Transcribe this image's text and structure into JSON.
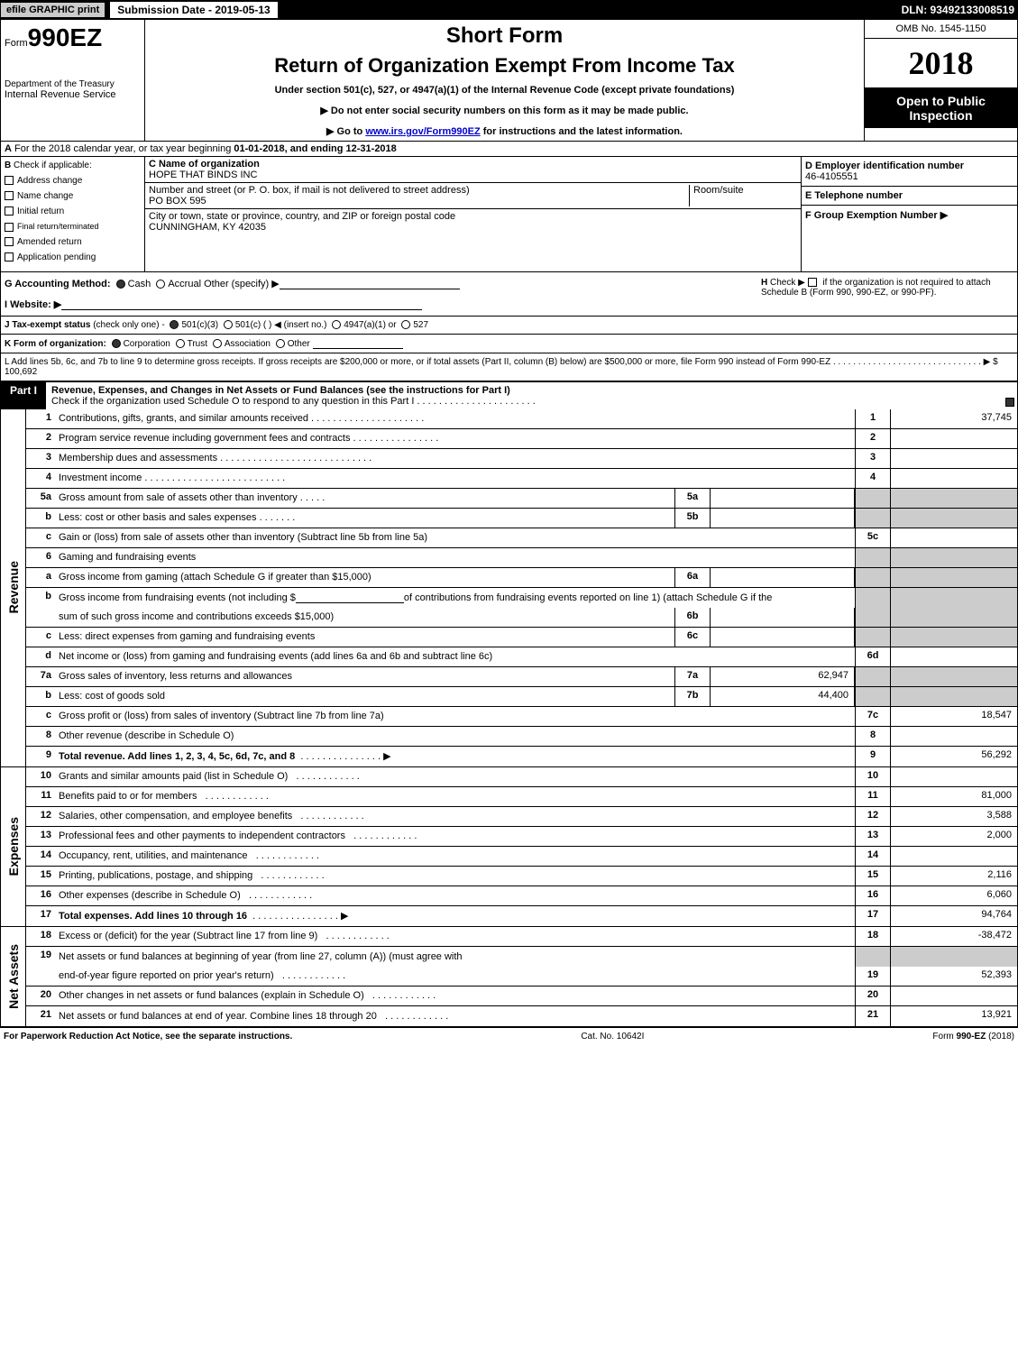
{
  "top_bar": {
    "efile": "efile GRAPHIC print",
    "submission": "Submission Date - 2019-05-13",
    "dln": "DLN: 93492133008519"
  },
  "header": {
    "form_prefix": "Form",
    "form_number": "990EZ",
    "dept_line1": "Department of the Treasury",
    "dept_line2": "Internal Revenue Service",
    "short_form": "Short Form",
    "title": "Return of Organization Exempt From Income Tax",
    "under_section": "Under section 501(c), 527, or 4947(a)(1) of the Internal Revenue Code (except private foundations)",
    "warning": "▶ Do not enter social security numbers on this form as it may be made public.",
    "goto": "▶ Go to www.irs.gov/Form990EZ for instructions and the latest information.",
    "goto_prefix": "▶ Go to ",
    "goto_link": "www.irs.gov/Form990EZ",
    "goto_suffix": " for instructions and the latest information.",
    "omb": "OMB No. 1545-1150",
    "year": "2018",
    "open_public_1": "Open to Public",
    "open_public_2": "Inspection"
  },
  "row_a": {
    "label": "A",
    "text_prefix": "For the 2018 calendar year, or tax year beginning ",
    "begin_date": "01-01-2018",
    "mid": ", and ending ",
    "end_date": "12-31-2018"
  },
  "section_b": {
    "label": "B",
    "title": "Check if applicable:",
    "items": [
      "Address change",
      "Name change",
      "Initial return",
      "Final return/terminated",
      "Amended return",
      "Application pending"
    ]
  },
  "section_c": {
    "name_label": "C Name of organization",
    "name_value": "HOPE THAT BINDS INC",
    "street_label": "Number and street (or P. O. box, if mail is not delivered to street address)",
    "street_value": "PO BOX 595",
    "room_label": "Room/suite",
    "city_label": "City or town, state or province, country, and ZIP or foreign postal code",
    "city_value": "CUNNINGHAM, KY  42035"
  },
  "section_d": {
    "ein_label": "D Employer identification number",
    "ein_value": "46-4105551",
    "phone_label": "E Telephone number",
    "group_label": "F Group Exemption Number  ▶"
  },
  "section_g": {
    "label": "G Accounting Method:",
    "cash": "Cash",
    "accrual": "Accrual",
    "other": "Other (specify) ▶",
    "h_label": "H",
    "h_text1": "Check ▶",
    "h_text2": "if the organization is not required to attach Schedule B (Form 990, 990-EZ, or 990-PF)."
  },
  "section_i": {
    "label": "I Website: ▶"
  },
  "section_j": {
    "label": "J Tax-exempt status",
    "text": "(check only one) -",
    "opt1": "501(c)(3)",
    "opt2": "501(c) (   ) ◀ (insert no.)",
    "opt3": "4947(a)(1) or",
    "opt4": "527"
  },
  "section_k": {
    "label": "K Form of organization:",
    "opts": [
      "Corporation",
      "Trust",
      "Association",
      "Other"
    ]
  },
  "section_l": {
    "text": "L Add lines 5b, 6c, and 7b to line 9 to determine gross receipts. If gross receipts are $200,000 or more, or if total assets (Part II, column (B) below) are $500,000 or more, file Form 990 instead of Form 990-EZ  . . . . . . . . . . . . . . . . . . . . . . . . . . . . . . ▶ $ 100,692"
  },
  "part1": {
    "label": "Part I",
    "title": "Revenue, Expenses, and Changes in Net Assets or Fund Balances (see the instructions for Part I)",
    "subtitle": "Check if the organization used Schedule O to respond to any question in this Part I . . . . . . . . . . . . . . . . . . . . . ."
  },
  "revenue": {
    "label": "Revenue",
    "rows": [
      {
        "n": "1",
        "desc": "Contributions, gifts, grants, and similar amounts received  . . . . . . . . . . . . . . . . . . . . .",
        "num": "1",
        "val": "37,745"
      },
      {
        "n": "2",
        "desc": "Program service revenue including government fees and contracts  . . . . . . . . . . . . . . . .",
        "num": "2",
        "val": ""
      },
      {
        "n": "3",
        "desc": "Membership dues and assessments  . . . . . . . . . . . . . . . . . . . . . . . . . . . .",
        "num": "3",
        "val": ""
      },
      {
        "n": "4",
        "desc": "Investment income  . . . . . . . . . . . . . . . . . . . . . . . . . .",
        "num": "4",
        "val": ""
      }
    ],
    "r5a": {
      "n": "5a",
      "desc": "Gross amount from sale of assets other than inventory  . . . . .",
      "sub": "5a"
    },
    "r5b": {
      "n": "b",
      "desc": "Less: cost or other basis and sales expenses  . . . . . . .",
      "sub": "5b"
    },
    "r5c": {
      "n": "c",
      "desc": "Gain or (loss) from sale of assets other than inventory (Subtract line 5b from line 5a)",
      "num": "5c",
      "val": ""
    },
    "r6": {
      "n": "6",
      "desc": "Gaming and fundraising events"
    },
    "r6a": {
      "n": "a",
      "desc": "Gross income from gaming (attach Schedule G if greater than $15,000)",
      "sub": "6a"
    },
    "r6b": {
      "n": "b",
      "desc1": "Gross income from fundraising events (not including $ ",
      "desc2": " of contributions from fundraising events reported on line 1) (attach Schedule G if the",
      "desc3": "sum of such gross income and contributions exceeds $15,000)",
      "sub": "6b"
    },
    "r6c": {
      "n": "c",
      "desc": "Less: direct expenses from gaming and fundraising events",
      "sub": "6c"
    },
    "r6d": {
      "n": "d",
      "desc": "Net income or (loss) from gaming and fundraising events (add lines 6a and 6b and subtract line 6c)",
      "num": "6d",
      "val": ""
    },
    "r7a": {
      "n": "7a",
      "desc": "Gross sales of inventory, less returns and allowances",
      "sub": "7a",
      "subval": "62,947"
    },
    "r7b": {
      "n": "b",
      "desc": "Less: cost of goods sold",
      "sub": "7b",
      "subval": "44,400"
    },
    "r7c": {
      "n": "c",
      "desc": "Gross profit or (loss) from sales of inventory (Subtract line 7b from line 7a)",
      "num": "7c",
      "val": "18,547"
    },
    "r8": {
      "n": "8",
      "desc": "Other revenue (describe in Schedule O)",
      "num": "8",
      "val": ""
    },
    "r9": {
      "n": "9",
      "desc": "Total revenue. Add lines 1, 2, 3, 4, 5c, 6d, 7c, and 8",
      "num": "9",
      "val": "56,292"
    }
  },
  "expenses": {
    "label": "Expenses",
    "rows": [
      {
        "n": "10",
        "desc": "Grants and similar amounts paid (list in Schedule O)",
        "num": "10",
        "val": ""
      },
      {
        "n": "11",
        "desc": "Benefits paid to or for members",
        "num": "11",
        "val": "81,000"
      },
      {
        "n": "12",
        "desc": "Salaries, other compensation, and employee benefits",
        "num": "12",
        "val": "3,588"
      },
      {
        "n": "13",
        "desc": "Professional fees and other payments to independent contractors",
        "num": "13",
        "val": "2,000"
      },
      {
        "n": "14",
        "desc": "Occupancy, rent, utilities, and maintenance",
        "num": "14",
        "val": ""
      },
      {
        "n": "15",
        "desc": "Printing, publications, postage, and shipping",
        "num": "15",
        "val": "2,116"
      },
      {
        "n": "16",
        "desc": "Other expenses (describe in Schedule O)",
        "num": "16",
        "val": "6,060"
      },
      {
        "n": "17",
        "desc": "Total expenses. Add lines 10 through 16",
        "num": "17",
        "val": "94,764"
      }
    ]
  },
  "netassets": {
    "label": "Net Assets",
    "rows": [
      {
        "n": "18",
        "desc": "Excess or (deficit) for the year (Subtract line 17 from line 9)",
        "num": "18",
        "val": "-38,472"
      },
      {
        "n": "19",
        "desc1": "Net assets or fund balances at beginning of year (from line 27, column (A)) (must agree with",
        "desc2": "end-of-year figure reported on prior year's return)",
        "num": "19",
        "val": "52,393"
      },
      {
        "n": "20",
        "desc": "Other changes in net assets or fund balances (explain in Schedule O)",
        "num": "20",
        "val": ""
      },
      {
        "n": "21",
        "desc": "Net assets or fund balances at end of year. Combine lines 18 through 20",
        "num": "21",
        "val": "13,921"
      }
    ]
  },
  "footer": {
    "left": "For Paperwork Reduction Act Notice, see the separate instructions.",
    "center": "Cat. No. 10642I",
    "right": "Form 990-EZ (2018)",
    "right_bold": "990-EZ"
  }
}
